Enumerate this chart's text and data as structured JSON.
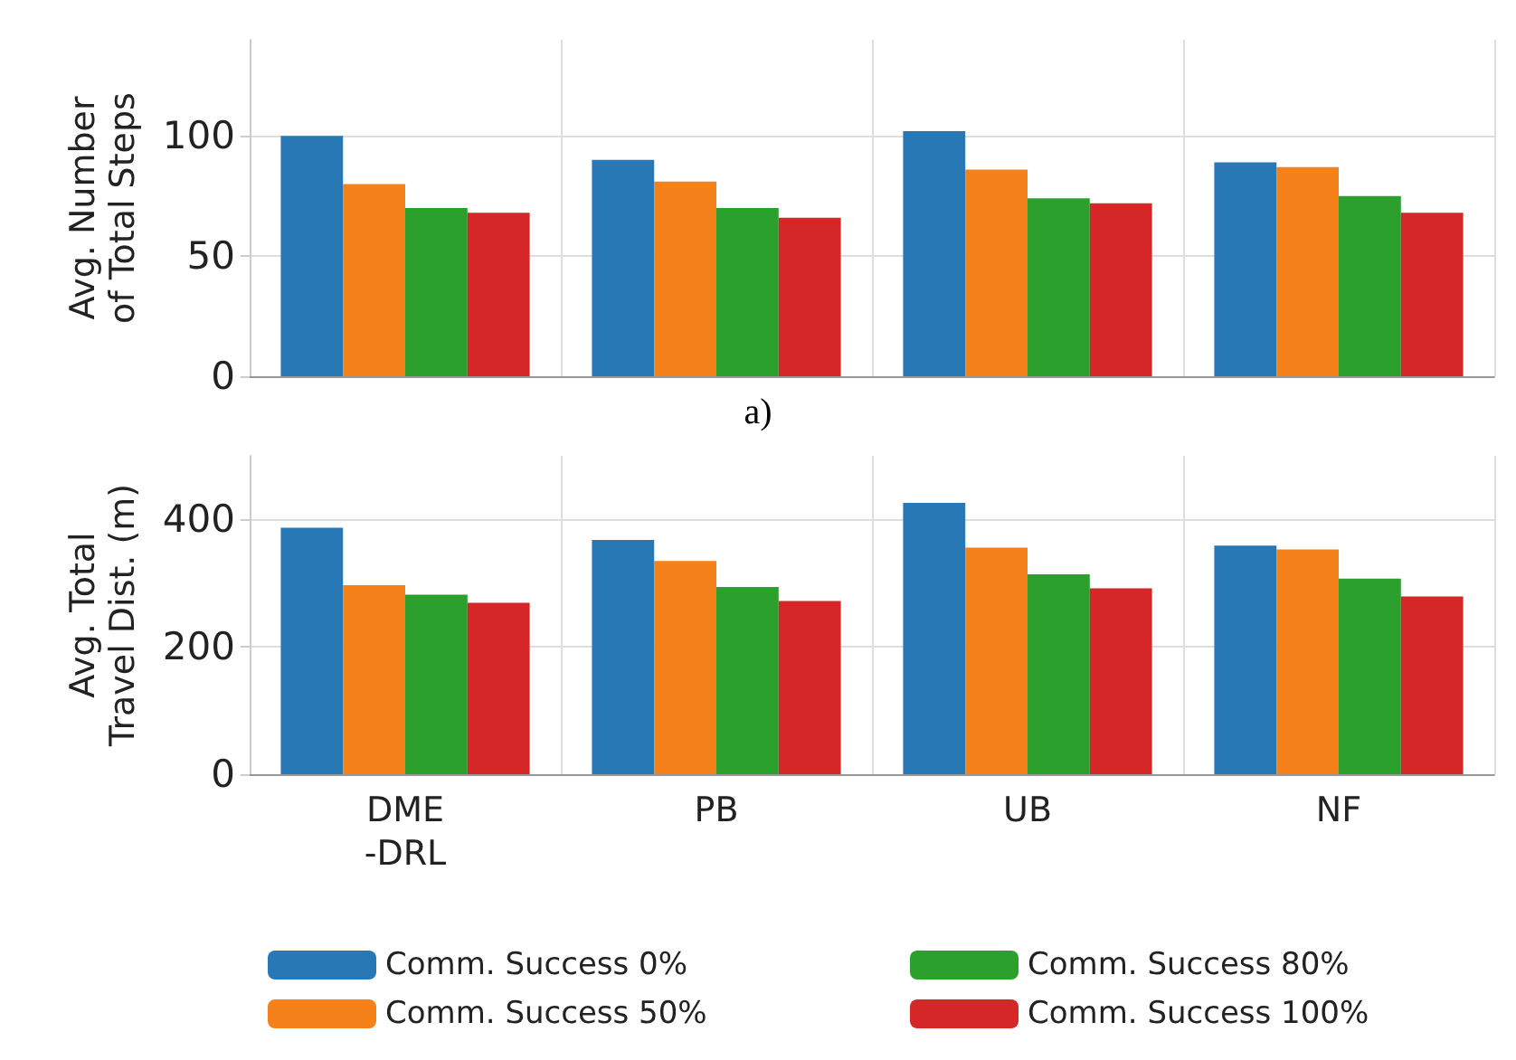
{
  "chart_data": [
    {
      "type": "bar",
      "ylabel": "Avg. Number\nof Total Steps",
      "annotations": [
        "a)"
      ],
      "categories": [
        null,
        null,
        null,
        null
      ],
      "series": [
        {
          "color": "#2878b5",
          "values": [
            100,
            90,
            102,
            89
          ]
        },
        {
          "color": "#f5811a",
          "values": [
            80,
            81,
            86,
            87
          ]
        },
        {
          "color": "#2ca02c",
          "values": [
            70,
            70,
            74,
            75
          ]
        },
        {
          "color": "#d62728",
          "values": [
            68,
            66,
            72,
            68
          ]
        }
      ],
      "ylim": [
        0,
        140
      ],
      "yticks": [
        0,
        50,
        100
      ],
      "grid": true,
      "legend": false,
      "tick_labels": "y"
    },
    {
      "type": "bar",
      "ylabel": "Avg. Total\nTravel Dist. (m)",
      "categories": [
        "DME\n-DRL",
        "PB",
        "UB",
        "NF"
      ],
      "series": [
        {
          "name": "Comm. Success 0%",
          "color": "#2878b5",
          "values": [
            387,
            368,
            426,
            359
          ]
        },
        {
          "name": "Comm. Success 50%",
          "color": "#f5811a",
          "values": [
            297,
            335,
            356,
            353
          ]
        },
        {
          "name": "Comm. Success 80%",
          "color": "#2ca02c",
          "values": [
            282,
            294,
            314,
            307
          ]
        },
        {
          "name": "Comm. Success 100%",
          "color": "#d62728",
          "values": [
            269,
            272,
            292,
            279
          ]
        }
      ],
      "ylim": [
        0,
        500
      ],
      "yticks": [
        0,
        200,
        400
      ],
      "grid": true,
      "legend": "bottom"
    }
  ]
}
